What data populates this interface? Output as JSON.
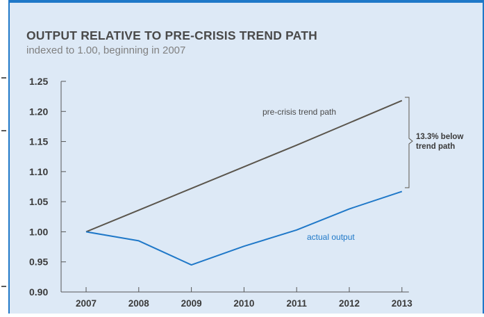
{
  "title": "OUTPUT RELATIVE TO PRE-CRISIS TREND PATH",
  "subtitle": "indexed to 1.00, beginning in 2007",
  "chart_data": {
    "type": "line",
    "title": "OUTPUT RELATIVE TO PRE-CRISIS TREND PATH",
    "subtitle": "indexed to 1.00, beginning in 2007",
    "xlabel": "",
    "ylabel": "",
    "x": [
      "2007",
      "2008",
      "2009",
      "2010",
      "2011",
      "2012",
      "2013"
    ],
    "ylim": [
      0.9,
      1.25
    ],
    "yticks": [
      "0.90",
      "0.95",
      "1.00",
      "1.05",
      "1.10",
      "1.15",
      "1.20",
      "1.25"
    ],
    "grid": false,
    "series": [
      {
        "name": "pre-crisis trend path",
        "color": "#5a554c",
        "values": [
          1.0,
          1.036,
          1.072,
          1.108,
          1.144,
          1.181,
          1.218
        ]
      },
      {
        "name": "actual output",
        "color": "#1f78c8",
        "values": [
          1.0,
          0.985,
          0.945,
          0.976,
          1.003,
          1.038,
          1.067
        ]
      }
    ],
    "annotations": [
      {
        "text": "pre-crisis trend path"
      },
      {
        "text": "actual output"
      },
      {
        "text_lines": [
          "13.3% below",
          "trend path"
        ]
      }
    ]
  }
}
